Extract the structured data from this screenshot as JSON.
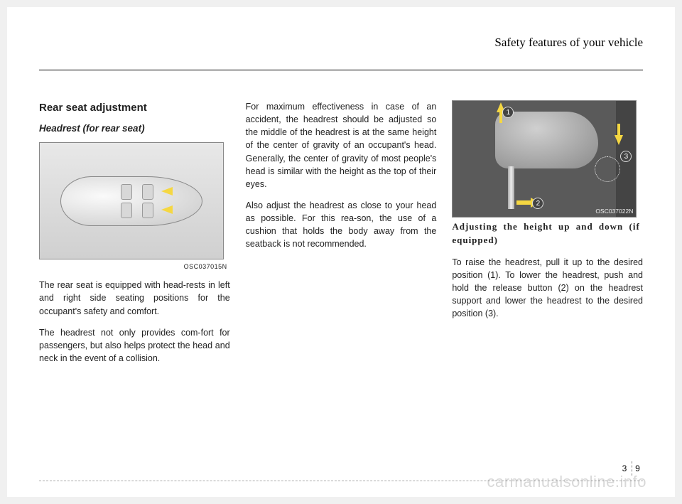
{
  "header": {
    "title": "Safety features of your vehicle"
  },
  "col1": {
    "heading1": "Rear seat adjustment",
    "heading2": "Headrest (for rear seat)",
    "figure_caption": "OSC037015N",
    "para1": "The rear seat is equipped with head-rests in left and right side seating positions for the occupant's safety and comfort.",
    "para2": "The headrest not only provides com-fort for passengers, but also helps protect the head and neck in the event of a collision."
  },
  "col2": {
    "para1": "For maximum effectiveness in case of an accident, the headrest should be adjusted so the middle of the headrest is at the same height of the center of gravity of an occupant's head. Generally, the center of gravity of most people's head is similar with the height as the top of their eyes.",
    "para2": "Also adjust the headrest as close to your head as possible. For this rea-son, the use of a cushion that holds the body away from the seatback is not recommended."
  },
  "col3": {
    "figure_caption": "OSC037022N",
    "heading": "Adjusting the height up and down (if equipped)",
    "para1": "To raise the headrest, pull it up to the desired position (1). To lower the headrest, push and hold the release button (2) on the headrest support and lower the headrest to the desired position (3).",
    "marker1": "1",
    "marker2": "2",
    "marker3": "3"
  },
  "footer": {
    "page_left": "3",
    "page_right": "9"
  },
  "watermark": "carmanualsonline.info"
}
